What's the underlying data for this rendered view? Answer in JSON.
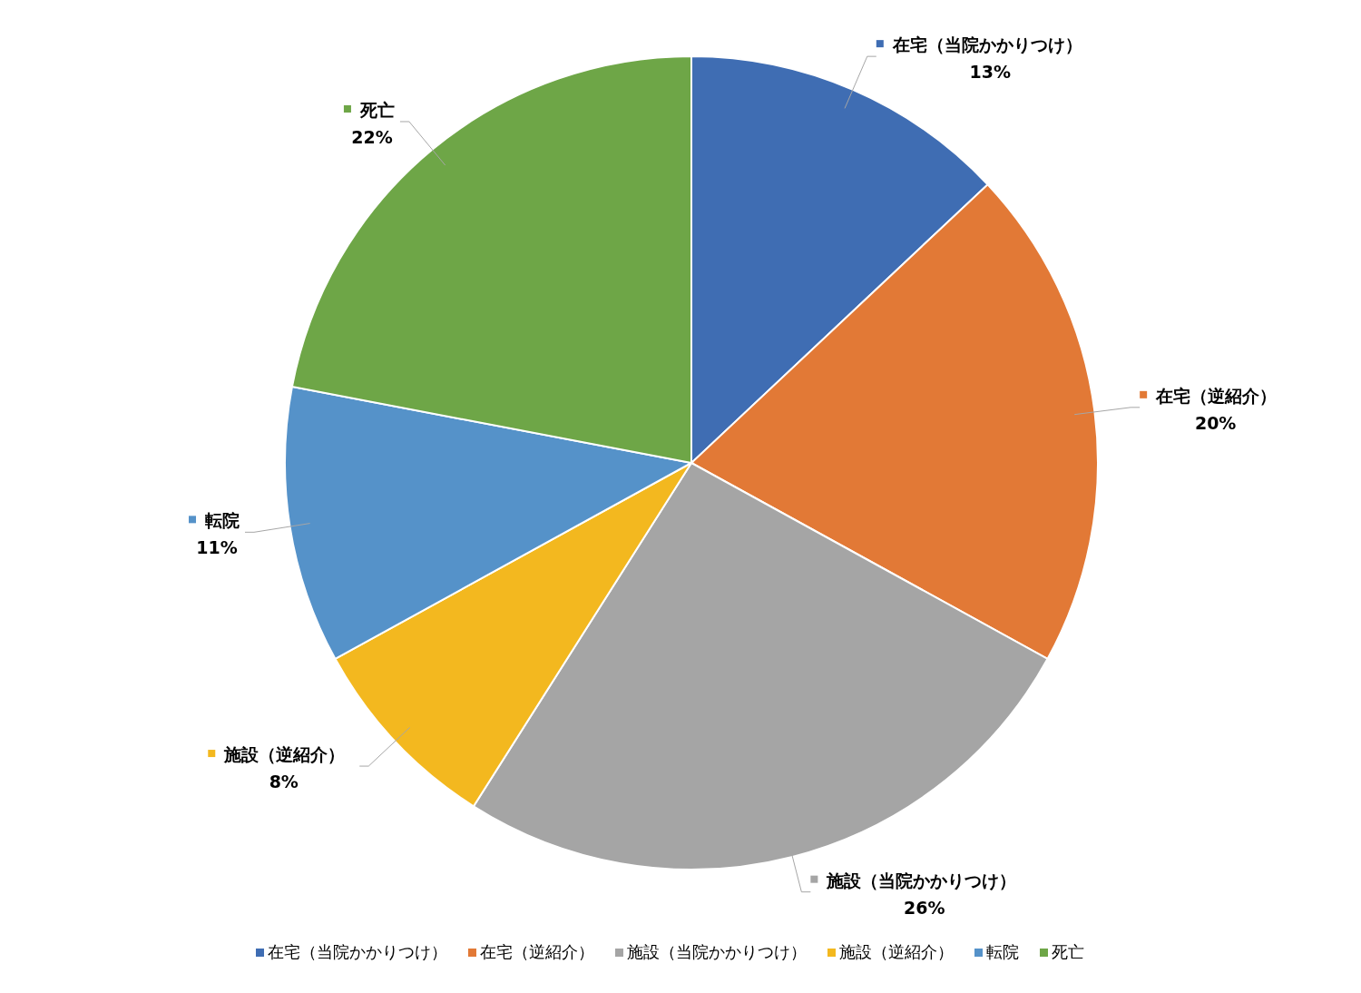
{
  "chart_data": {
    "type": "pie",
    "categories": [
      "在宅（当院かかりつけ）",
      "在宅（逆紹介）",
      "施設（当院かかりつけ）",
      "施設（逆紹介）",
      "転院",
      "死亡"
    ],
    "values": [
      13,
      20,
      26,
      8,
      11,
      22
    ],
    "colors": [
      "#3f6db3",
      "#e27936",
      "#a5a5a5",
      "#f3b81f",
      "#5592c9",
      "#6ea647"
    ],
    "value_labels": [
      "13%",
      "20%",
      "26%",
      "8%",
      "11%",
      "22%"
    ],
    "legend": "bottom"
  }
}
